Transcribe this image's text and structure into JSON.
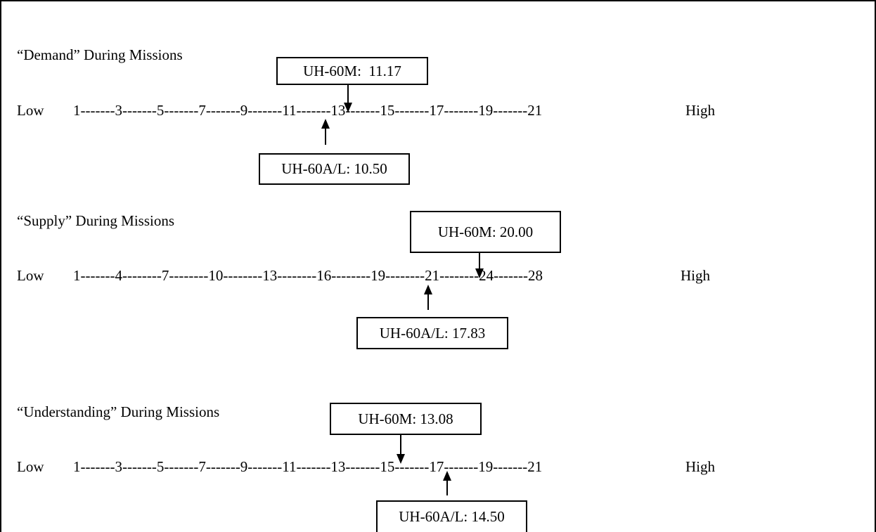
{
  "scales": [
    {
      "title": "“Demand” During Missions",
      "low_label": "Low",
      "high_label": "High",
      "scale_text": "1-------3-------5-------7-------9-------11-------13-------15-------17-------19-------21",
      "markers": [
        {
          "series": "UH-60M",
          "label": "UH-60M:  11.17",
          "value": 11.17
        },
        {
          "series": "UH-60A/L",
          "label": "UH-60A/L: 10.50",
          "value": 10.5
        }
      ]
    },
    {
      "title": "“Supply” During Missions",
      "low_label": "Low",
      "high_label": "High",
      "scale_text": "1-------4--------7--------10--------13--------16--------19--------21--------24-------28",
      "markers": [
        {
          "series": "UH-60M",
          "label": "UH-60M: 20.00",
          "value": 20.0
        },
        {
          "series": "UH-60A/L",
          "label": "UH-60A/L: 17.83",
          "value": 17.83
        }
      ]
    },
    {
      "title": "“Understanding” During Missions",
      "low_label": "Low",
      "high_label": "High",
      "scale_text": "1-------3-------5-------7-------9-------11-------13-------15-------17-------19-------21",
      "markers": [
        {
          "series": "UH-60M",
          "label": "UH-60M: 13.08",
          "value": 13.08
        },
        {
          "series": "UH-60A/L",
          "label": "UH-60A/L: 14.50",
          "value": 14.5
        }
      ]
    }
  ],
  "colors": {
    "ink": "#000000",
    "background": "#ffffff"
  }
}
